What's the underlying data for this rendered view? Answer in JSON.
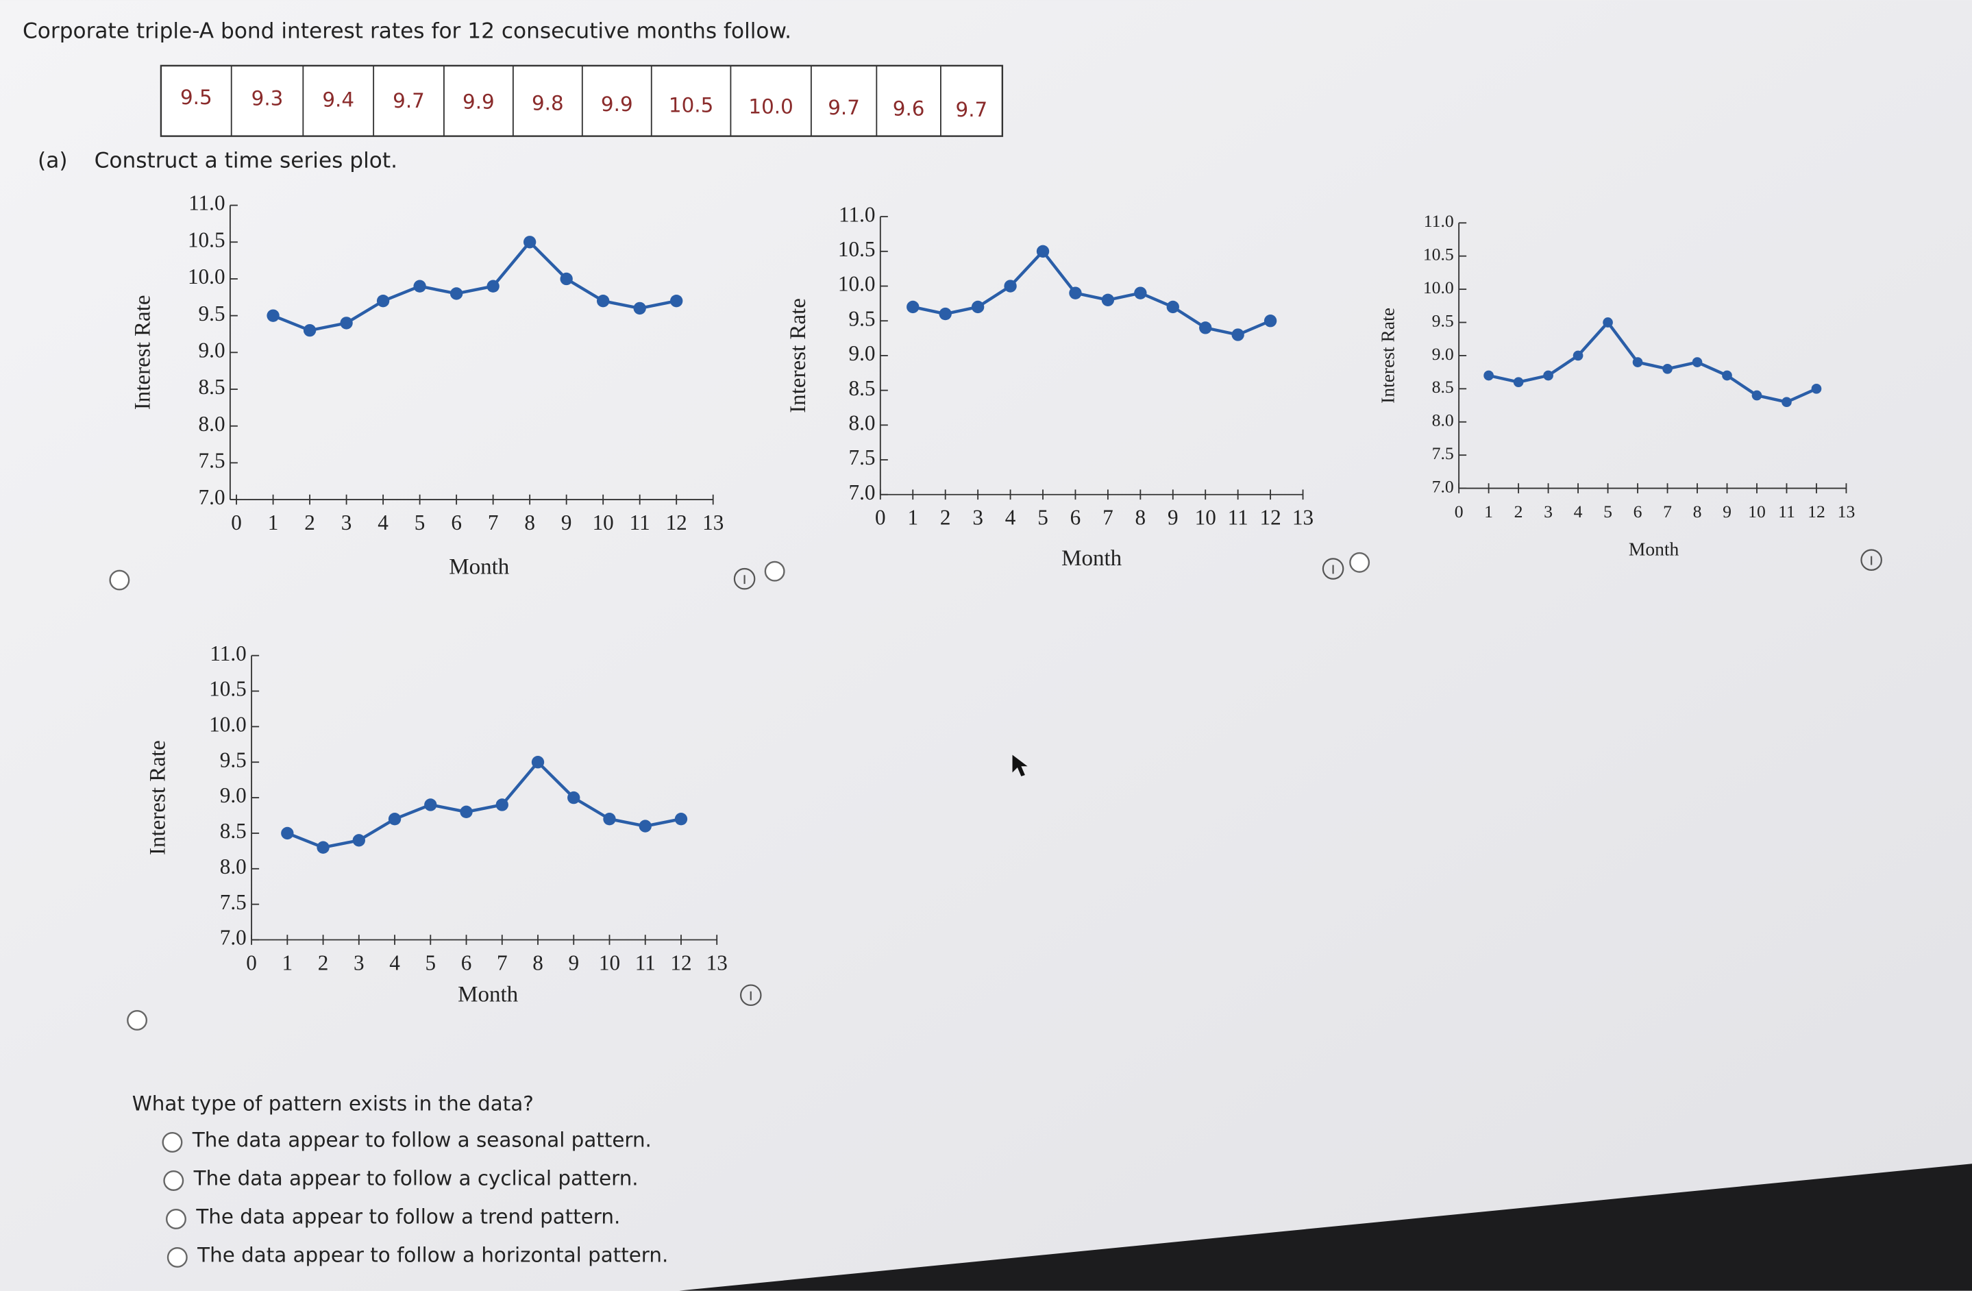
{
  "header": {
    "prompt": "Corporate triple-A bond interest rates for 12 consecutive months follow."
  },
  "table": {
    "values": [
      "9.5",
      "9.3",
      "9.4",
      "9.7",
      "9.9",
      "9.8",
      "9.9",
      "10.5",
      "10.0",
      "9.7",
      "9.6",
      "9.7"
    ]
  },
  "part_a": {
    "label": "(a)",
    "instruction": "Construct a time series plot."
  },
  "chart_data": [
    {
      "type": "line",
      "x_label": "Month",
      "y_label": "Interest Rate",
      "x": [
        1,
        2,
        3,
        4,
        5,
        6,
        7,
        8,
        9,
        10,
        11,
        12
      ],
      "xlim": [
        0,
        13
      ],
      "xticks": [
        0,
        1,
        2,
        3,
        4,
        5,
        6,
        7,
        8,
        9,
        10,
        11,
        12,
        13
      ],
      "ylim": [
        7,
        11
      ],
      "yticks": [
        {
          "value": 7,
          "label": "7.0"
        },
        {
          "value": 7.5,
          "label": "7.5"
        },
        {
          "value": 8,
          "label": "8.0"
        },
        {
          "value": 8.5,
          "label": "8.5"
        },
        {
          "value": 9,
          "label": "9.0"
        },
        {
          "value": 9.5,
          "label": "9.5"
        },
        {
          "value": 10,
          "label": "10.0"
        },
        {
          "value": 10.5,
          "label": "10.5"
        },
        {
          "value": 11,
          "label": "11.0"
        }
      ],
      "series": [
        {
          "color": "#2a5ea8",
          "values": [
            9.5,
            9.3,
            9.4,
            9.7,
            9.9,
            9.8,
            9.9,
            10.5,
            10.0,
            9.7,
            9.6,
            9.7
          ]
        }
      ]
    },
    {
      "type": "line",
      "x_label": "Month",
      "y_label": "Interest Rate",
      "x": [
        1,
        2,
        3,
        4,
        5,
        6,
        7,
        8,
        9,
        10,
        11,
        12
      ],
      "xlim": [
        0,
        13
      ],
      "xticks": [
        0,
        1,
        2,
        3,
        4,
        5,
        6,
        7,
        8,
        9,
        10,
        11,
        12,
        13
      ],
      "ylim": [
        7,
        11
      ],
      "yticks": [
        {
          "value": 7,
          "label": "7.0"
        },
        {
          "value": 7.5,
          "label": "7.5"
        },
        {
          "value": 8,
          "label": "8.0"
        },
        {
          "value": 8.5,
          "label": "8.5"
        },
        {
          "value": 9,
          "label": "9.0"
        },
        {
          "value": 9.5,
          "label": "9.5"
        },
        {
          "value": 10,
          "label": "10.0"
        },
        {
          "value": 10.5,
          "label": "10.5"
        },
        {
          "value": 11,
          "label": "11.0"
        }
      ],
      "series": [
        {
          "color": "#2a5ea8",
          "values": [
            9.7,
            9.6,
            9.7,
            10.0,
            10.5,
            9.9,
            9.8,
            9.9,
            9.7,
            9.4,
            9.3,
            9.5
          ]
        }
      ]
    },
    {
      "type": "line",
      "x_label": "Month",
      "y_label": "Interest Rate",
      "x": [
        1,
        2,
        3,
        4,
        5,
        6,
        7,
        8,
        9,
        10,
        11,
        12
      ],
      "xlim": [
        0,
        13
      ],
      "xticks": [
        0,
        1,
        2,
        3,
        4,
        5,
        6,
        7,
        8,
        9,
        10,
        11,
        12,
        13
      ],
      "ylim": [
        7,
        11
      ],
      "yticks": [
        {
          "value": 7,
          "label": "7.0"
        },
        {
          "value": 7.5,
          "label": "7.5"
        },
        {
          "value": 8,
          "label": "8.0"
        },
        {
          "value": 8.5,
          "label": "8.5"
        },
        {
          "value": 9,
          "label": "9.0"
        },
        {
          "value": 9.5,
          "label": "9.5"
        },
        {
          "value": 10,
          "label": "10.0"
        },
        {
          "value": 10.5,
          "label": "10.5"
        },
        {
          "value": 11,
          "label": "11.0"
        }
      ],
      "series": [
        {
          "color": "#2a5ea8",
          "values": [
            8.7,
            8.6,
            8.7,
            9.0,
            9.5,
            8.9,
            8.8,
            8.9,
            8.7,
            8.4,
            8.3,
            8.5
          ]
        }
      ]
    },
    {
      "type": "line",
      "x_label": "Month",
      "y_label": "Interest Rate",
      "x": [
        1,
        2,
        3,
        4,
        5,
        6,
        7,
        8,
        9,
        10,
        11,
        12
      ],
      "xlim": [
        0,
        13
      ],
      "xticks": [
        0,
        1,
        2,
        3,
        4,
        5,
        6,
        7,
        8,
        9,
        10,
        11,
        12,
        13
      ],
      "ylim": [
        7,
        11
      ],
      "yticks": [
        {
          "value": 7,
          "label": "7.0"
        },
        {
          "value": 7.5,
          "label": "7.5"
        },
        {
          "value": 8,
          "label": "8.0"
        },
        {
          "value": 8.5,
          "label": "8.5"
        },
        {
          "value": 9,
          "label": "9.0"
        },
        {
          "value": 9.5,
          "label": "9.5"
        },
        {
          "value": 10,
          "label": "10.0"
        },
        {
          "value": 10.5,
          "label": "10.5"
        },
        {
          "value": 11,
          "label": "11.0"
        }
      ],
      "series": [
        {
          "color": "#2a5ea8",
          "values": [
            8.5,
            8.3,
            8.4,
            8.7,
            8.9,
            8.8,
            8.9,
            9.5,
            9.0,
            8.7,
            8.6,
            8.7
          ]
        }
      ]
    }
  ],
  "question": {
    "text": "What type of pattern exists in the data?",
    "options": [
      "The data appear to follow a seasonal pattern.",
      "The data appear to follow a cyclical pattern.",
      "The data appear to follow a trend pattern.",
      "The data appear to follow a horizontal pattern."
    ]
  }
}
